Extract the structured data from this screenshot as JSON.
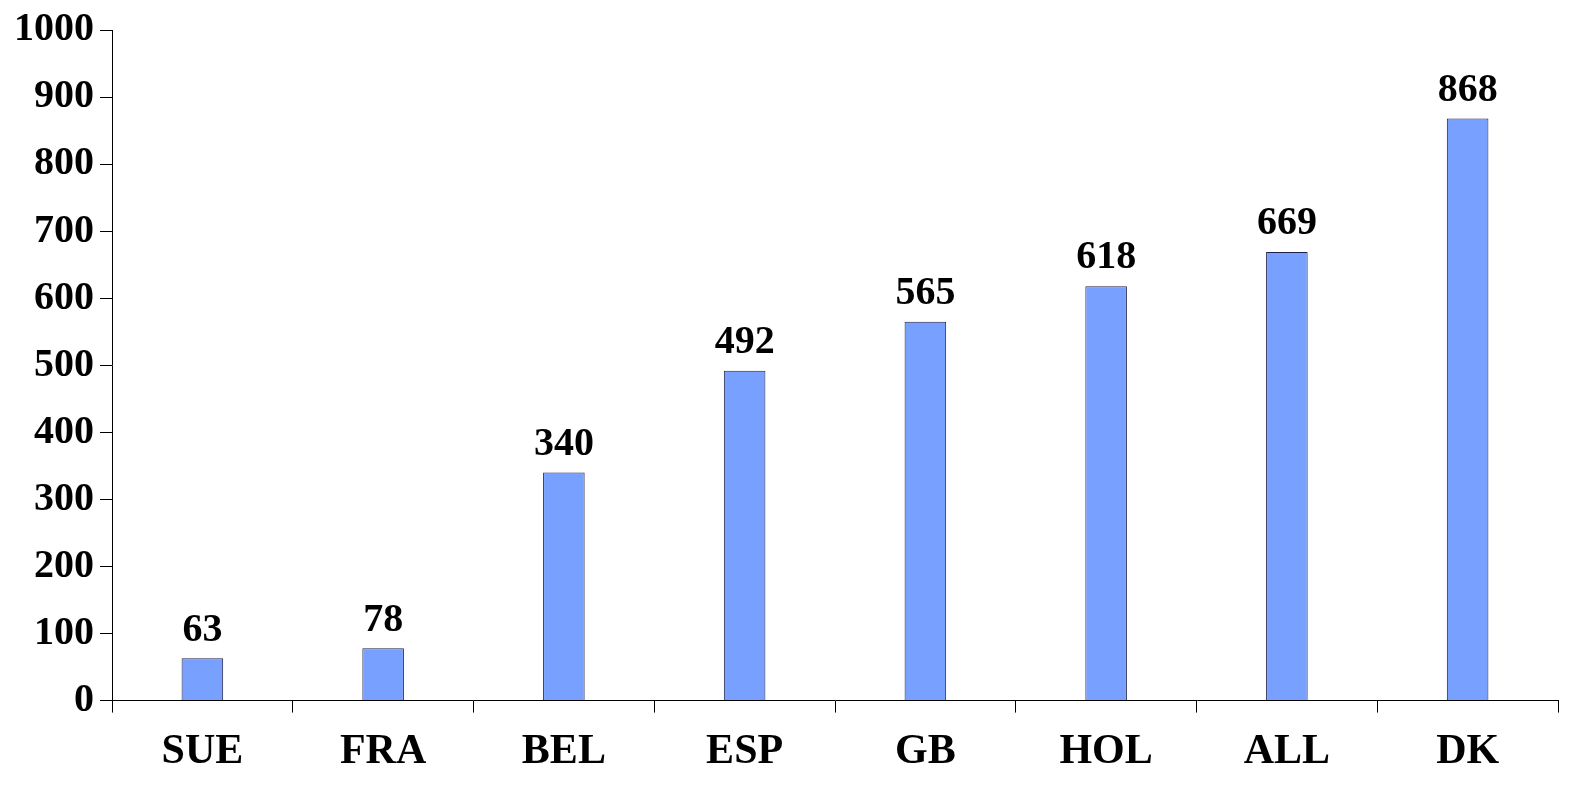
{
  "chart_data": {
    "type": "bar",
    "categories": [
      "SUE",
      "FRA",
      "BEL",
      "ESP",
      "GB",
      "HOL",
      "ALL",
      "DK"
    ],
    "values": [
      63,
      78,
      340,
      492,
      565,
      618,
      669,
      868
    ],
    "color": "#78a0ff",
    "ylim": [
      0,
      1000
    ],
    "yticks": [
      0,
      100,
      200,
      300,
      400,
      500,
      600,
      700,
      800,
      900,
      1000
    ],
    "grid": false,
    "data_labels": true
  }
}
